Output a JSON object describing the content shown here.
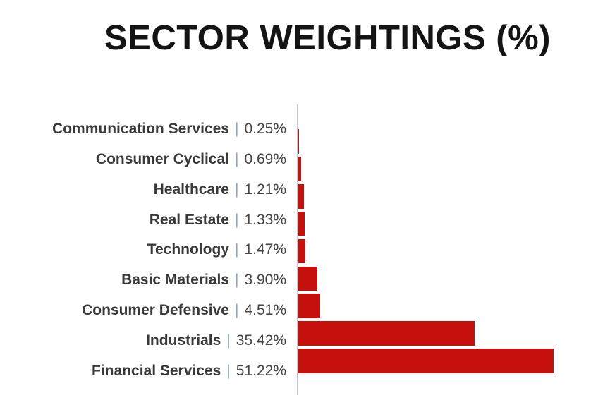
{
  "title": "SECTOR WEIGHTINGS (%)",
  "separator": "|",
  "colors": {
    "bar": "#C6100E",
    "axis_line": "#C9C9C9",
    "category_text": "#3A3839",
    "value_text": "#454344",
    "separator_text": "#8FA6BD",
    "title_text": "#141414"
  },
  "chart_data": {
    "type": "bar",
    "orientation": "horizontal",
    "title": "SECTOR WEIGHTINGS (%)",
    "xlabel": "",
    "ylabel": "",
    "grid": false,
    "legend_position": "none",
    "xlim": [
      0,
      62
    ],
    "categories": [
      "Communication Services",
      "Consumer Cyclical",
      "Healthcare",
      "Real Estate",
      "Technology",
      "Basic Materials",
      "Consumer Defensive",
      "Industrials",
      "Financial Services"
    ],
    "values": [
      0.25,
      0.69,
      1.21,
      1.33,
      1.47,
      3.9,
      4.51,
      35.42,
      51.22
    ],
    "value_labels": [
      "0.25%",
      "0.69%",
      "1.21%",
      "1.33%",
      "1.47%",
      "3.90%",
      "4.51%",
      "35.42%",
      "51.22%"
    ]
  }
}
